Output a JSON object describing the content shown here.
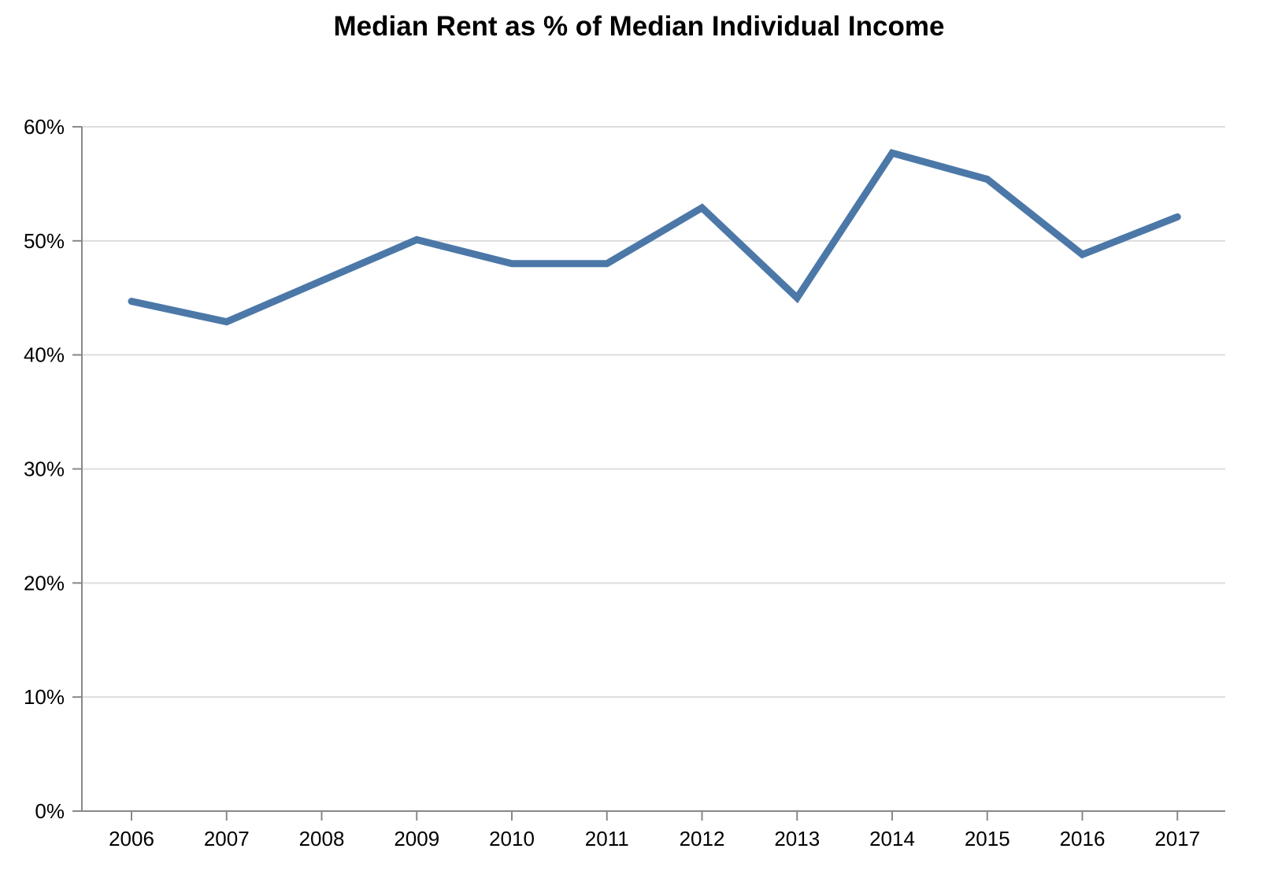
{
  "chart_data": {
    "type": "line",
    "title": "Median Rent as % of Median Individual Income",
    "xlabel": "",
    "ylabel": "",
    "x": [
      "2006",
      "2007",
      "2008",
      "2009",
      "2010",
      "2011",
      "2012",
      "2013",
      "2014",
      "2015",
      "2016",
      "2017"
    ],
    "series": [
      {
        "values": [
          44.7,
          42.9,
          46.5,
          50.1,
          48.0,
          48.0,
          52.9,
          45.0,
          57.7,
          55.4,
          48.8,
          52.1
        ],
        "color": "#4c78a8"
      }
    ],
    "ylim": [
      0,
      60
    ],
    "yticks": [
      0,
      10,
      20,
      30,
      40,
      50,
      60
    ],
    "ytick_labels": [
      "0%",
      "10%",
      "20%",
      "30%",
      "40%",
      "50%",
      "60%"
    ],
    "grid": true,
    "gridline_color": "#dddddd",
    "axis_color": "#888888"
  }
}
